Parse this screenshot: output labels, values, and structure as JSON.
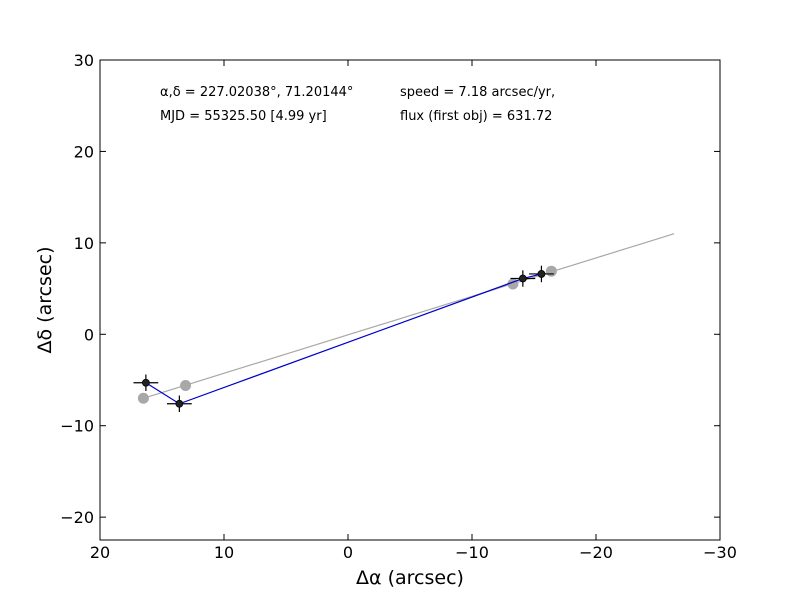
{
  "chart_data": {
    "type": "scatter",
    "xlabel": "Δα (arcsec)",
    "ylabel": "Δδ (arcsec)",
    "xlim": [
      20,
      -30
    ],
    "ylim": [
      -22.5,
      30
    ],
    "xticks": [
      20,
      10,
      0,
      -10,
      -20,
      -30
    ],
    "yticks": [
      -20,
      -10,
      0,
      10,
      20,
      30
    ],
    "xtick_labels": [
      "20",
      "10",
      "0",
      "−10",
      "−20",
      "−30"
    ],
    "ytick_labels": [
      "−20",
      "−10",
      "0",
      "10",
      "20",
      "30"
    ],
    "annotations": {
      "coords": "α,δ = 227.02038°, 71.20144°",
      "mjd": "MJD = 55325.50 [4.99 yr]",
      "speed": "speed = 7.18 arcsec/yr,",
      "flux": "flux (first obj) = 631.72"
    },
    "series": [
      {
        "kind": "fit-line",
        "color": "#a8a8a8",
        "x": [
          16.5,
          -26.3
        ],
        "y": [
          -7.0,
          11.0
        ]
      },
      {
        "kind": "predicted-positions",
        "color": "#a8a8a8",
        "x": [
          16.5,
          13.1,
          -13.3,
          -16.4
        ],
        "y": [
          -7.0,
          -5.6,
          5.5,
          6.9
        ]
      },
      {
        "kind": "measured-track",
        "color": "#0000cc",
        "x": [
          16.3,
          13.6,
          -14.1,
          -15.6
        ],
        "y": [
          -5.3,
          -7.6,
          6.1,
          6.6
        ]
      },
      {
        "kind": "measured-points",
        "color": "#222222",
        "x": [
          16.3,
          13.6,
          -14.1,
          -15.6
        ],
        "y": [
          -5.3,
          -7.6,
          6.1,
          6.6
        ],
        "xerr": [
          1.0,
          1.0,
          1.0,
          1.0
        ],
        "yerr": [
          0.9,
          0.9,
          0.9,
          0.9
        ]
      }
    ]
  }
}
